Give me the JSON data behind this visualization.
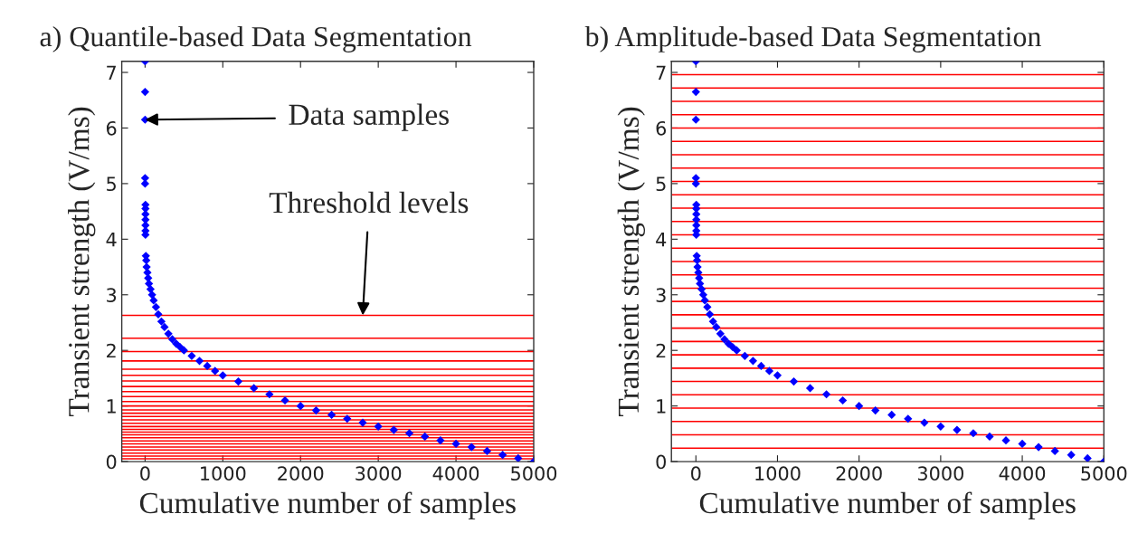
{
  "chart_data": [
    {
      "type": "scatter",
      "title": "a) Quantile-based Data Segmentation",
      "xlabel": "Cumulative number of samples",
      "ylabel": "Transient strength (V/ms)",
      "xlim": [
        -300,
        5000
      ],
      "ylim": [
        0,
        7.2
      ],
      "xticks": [
        0,
        1000,
        2000,
        3000,
        4000,
        5000
      ],
      "yticks": [
        0,
        1,
        2,
        3,
        4,
        5,
        6,
        7
      ],
      "grid": false,
      "marker": "diamond",
      "series": [
        {
          "color": "#0000ff",
          "x": [
            0,
            0,
            0,
            0,
            0,
            5,
            5,
            5,
            5,
            5,
            5,
            5,
            10,
            15,
            20,
            30,
            40,
            50,
            70,
            90,
            110,
            140,
            170,
            210,
            250,
            300,
            350,
            400,
            450,
            500,
            600,
            700,
            800,
            900,
            1000,
            1200,
            1400,
            1600,
            1800,
            2000,
            2200,
            2400,
            2600,
            2800,
            3000,
            3200,
            3400,
            3600,
            3800,
            4000,
            4200,
            4400,
            4600,
            4800,
            5000
          ],
          "values": [
            7.2,
            6.65,
            6.15,
            5.1,
            5.0,
            4.62,
            4.55,
            4.45,
            4.35,
            4.25,
            4.15,
            4.08,
            3.7,
            3.62,
            3.5,
            3.4,
            3.3,
            3.2,
            3.1,
            3.0,
            2.9,
            2.78,
            2.65,
            2.52,
            2.42,
            2.3,
            2.2,
            2.12,
            2.06,
            2.0,
            1.9,
            1.81,
            1.72,
            1.63,
            1.55,
            1.44,
            1.32,
            1.21,
            1.1,
            1.0,
            0.92,
            0.84,
            0.77,
            0.7,
            0.63,
            0.57,
            0.51,
            0.45,
            0.38,
            0.32,
            0.26,
            0.19,
            0.12,
            0.06,
            0.0
          ]
        }
      ],
      "ref_lines": [
        {
          "axis": "y",
          "value": 2.63,
          "color": "#ff0000"
        },
        {
          "axis": "y",
          "value": 2.22,
          "color": "#ff0000"
        },
        {
          "axis": "y",
          "value": 1.98,
          "color": "#ff0000"
        },
        {
          "axis": "y",
          "value": 1.81,
          "color": "#ff0000"
        },
        {
          "axis": "y",
          "value": 1.66,
          "color": "#ff0000"
        },
        {
          "axis": "y",
          "value": 1.55,
          "color": "#ff0000"
        },
        {
          "axis": "y",
          "value": 1.45,
          "color": "#ff0000"
        },
        {
          "axis": "y",
          "value": 1.35,
          "color": "#ff0000"
        },
        {
          "axis": "y",
          "value": 1.26,
          "color": "#ff0000"
        },
        {
          "axis": "y",
          "value": 1.17,
          "color": "#ff0000"
        },
        {
          "axis": "y",
          "value": 1.08,
          "color": "#ff0000"
        },
        {
          "axis": "y",
          "value": 1.0,
          "color": "#ff0000"
        },
        {
          "axis": "y",
          "value": 0.93,
          "color": "#ff0000"
        },
        {
          "axis": "y",
          "value": 0.87,
          "color": "#ff0000"
        },
        {
          "axis": "y",
          "value": 0.81,
          "color": "#ff0000"
        },
        {
          "axis": "y",
          "value": 0.75,
          "color": "#ff0000"
        },
        {
          "axis": "y",
          "value": 0.69,
          "color": "#ff0000"
        },
        {
          "axis": "y",
          "value": 0.63,
          "color": "#ff0000"
        },
        {
          "axis": "y",
          "value": 0.58,
          "color": "#ff0000"
        },
        {
          "axis": "y",
          "value": 0.53,
          "color": "#ff0000"
        },
        {
          "axis": "y",
          "value": 0.48,
          "color": "#ff0000"
        },
        {
          "axis": "y",
          "value": 0.43,
          "color": "#ff0000"
        },
        {
          "axis": "y",
          "value": 0.37,
          "color": "#ff0000"
        },
        {
          "axis": "y",
          "value": 0.32,
          "color": "#ff0000"
        },
        {
          "axis": "y",
          "value": 0.26,
          "color": "#ff0000"
        },
        {
          "axis": "y",
          "value": 0.21,
          "color": "#ff0000"
        },
        {
          "axis": "y",
          "value": 0.15,
          "color": "#ff0000"
        },
        {
          "axis": "y",
          "value": 0.1,
          "color": "#ff0000"
        },
        {
          "axis": "y",
          "value": 0.05,
          "color": "#ff0000"
        }
      ],
      "annotations": [
        {
          "text": "Data samples",
          "x": 0,
          "y": 6.15
        },
        {
          "text": "Threshold levels",
          "x": 2800,
          "y": 2.63
        }
      ]
    },
    {
      "type": "scatter",
      "title": "b) Amplitude-based Data Segmentation",
      "xlabel": "Cumulative number of samples",
      "ylabel": "Transient strength (V/ms)",
      "xlim": [
        -300,
        5000
      ],
      "ylim": [
        0,
        7.2
      ],
      "xticks": [
        0,
        1000,
        2000,
        3000,
        4000,
        5000
      ],
      "yticks": [
        0,
        1,
        2,
        3,
        4,
        5,
        6,
        7
      ],
      "grid": false,
      "marker": "diamond",
      "series": [
        {
          "color": "#0000ff",
          "x": [
            0,
            0,
            0,
            0,
            0,
            5,
            5,
            5,
            5,
            5,
            5,
            5,
            10,
            15,
            20,
            30,
            40,
            50,
            70,
            90,
            110,
            140,
            170,
            210,
            250,
            300,
            350,
            400,
            450,
            500,
            600,
            700,
            800,
            900,
            1000,
            1200,
            1400,
            1600,
            1800,
            2000,
            2200,
            2400,
            2600,
            2800,
            3000,
            3200,
            3400,
            3600,
            3800,
            4000,
            4200,
            4400,
            4600,
            4800,
            5000
          ],
          "values": [
            7.2,
            6.65,
            6.15,
            5.1,
            5.0,
            4.62,
            4.55,
            4.45,
            4.35,
            4.25,
            4.15,
            4.08,
            3.7,
            3.62,
            3.5,
            3.4,
            3.3,
            3.2,
            3.1,
            3.0,
            2.9,
            2.78,
            2.65,
            2.52,
            2.42,
            2.3,
            2.2,
            2.12,
            2.06,
            2.0,
            1.9,
            1.81,
            1.72,
            1.63,
            1.55,
            1.44,
            1.32,
            1.21,
            1.1,
            1.0,
            0.92,
            0.84,
            0.77,
            0.7,
            0.63,
            0.57,
            0.51,
            0.45,
            0.38,
            0.32,
            0.26,
            0.19,
            0.12,
            0.06,
            0.0
          ]
        }
      ],
      "ref_lines": [
        {
          "axis": "y",
          "value": 0.24,
          "color": "#ff0000"
        },
        {
          "axis": "y",
          "value": 0.48,
          "color": "#ff0000"
        },
        {
          "axis": "y",
          "value": 0.72,
          "color": "#ff0000"
        },
        {
          "axis": "y",
          "value": 0.96,
          "color": "#ff0000"
        },
        {
          "axis": "y",
          "value": 1.2,
          "color": "#ff0000"
        },
        {
          "axis": "y",
          "value": 1.44,
          "color": "#ff0000"
        },
        {
          "axis": "y",
          "value": 1.68,
          "color": "#ff0000"
        },
        {
          "axis": "y",
          "value": 1.92,
          "color": "#ff0000"
        },
        {
          "axis": "y",
          "value": 2.16,
          "color": "#ff0000"
        },
        {
          "axis": "y",
          "value": 2.4,
          "color": "#ff0000"
        },
        {
          "axis": "y",
          "value": 2.64,
          "color": "#ff0000"
        },
        {
          "axis": "y",
          "value": 2.88,
          "color": "#ff0000"
        },
        {
          "axis": "y",
          "value": 3.12,
          "color": "#ff0000"
        },
        {
          "axis": "y",
          "value": 3.36,
          "color": "#ff0000"
        },
        {
          "axis": "y",
          "value": 3.6,
          "color": "#ff0000"
        },
        {
          "axis": "y",
          "value": 3.84,
          "color": "#ff0000"
        },
        {
          "axis": "y",
          "value": 4.08,
          "color": "#ff0000"
        },
        {
          "axis": "y",
          "value": 4.32,
          "color": "#ff0000"
        },
        {
          "axis": "y",
          "value": 4.56,
          "color": "#ff0000"
        },
        {
          "axis": "y",
          "value": 4.8,
          "color": "#ff0000"
        },
        {
          "axis": "y",
          "value": 5.04,
          "color": "#ff0000"
        },
        {
          "axis": "y",
          "value": 5.28,
          "color": "#ff0000"
        },
        {
          "axis": "y",
          "value": 5.52,
          "color": "#ff0000"
        },
        {
          "axis": "y",
          "value": 5.76,
          "color": "#ff0000"
        },
        {
          "axis": "y",
          "value": 6.0,
          "color": "#ff0000"
        },
        {
          "axis": "y",
          "value": 6.24,
          "color": "#ff0000"
        },
        {
          "axis": "y",
          "value": 6.48,
          "color": "#ff0000"
        },
        {
          "axis": "y",
          "value": 6.72,
          "color": "#ff0000"
        },
        {
          "axis": "y",
          "value": 6.96,
          "color": "#ff0000"
        }
      ]
    }
  ]
}
